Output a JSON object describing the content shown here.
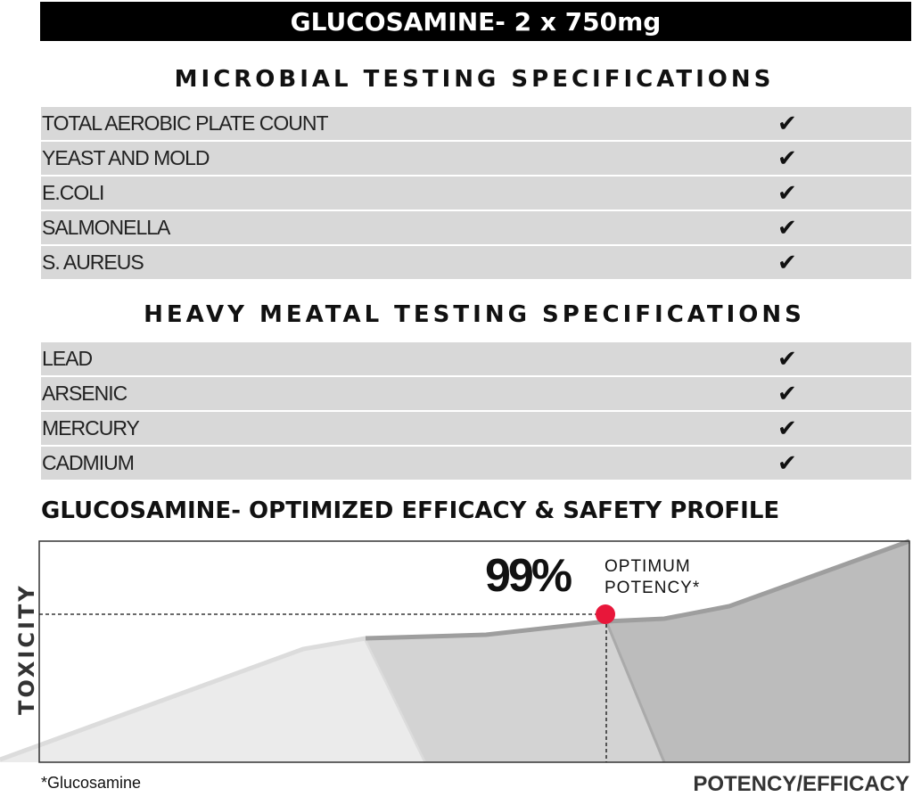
{
  "banner": {
    "title": "GLUCOSAMINE- 2 x 750mg"
  },
  "microbial": {
    "title": "MICROBIAL TESTING SPECIFICATIONS",
    "rows": [
      {
        "label": "TOTAL AEROBIC PLATE COUNT",
        "check": "✔"
      },
      {
        "label": "YEAST AND MOLD",
        "check": "✔"
      },
      {
        "label": "E.COLI",
        "check": "✔"
      },
      {
        "label": "SALMONELLA",
        "check": "✔"
      },
      {
        "label": "S. AUREUS",
        "check": "✔"
      }
    ]
  },
  "metal": {
    "title": "HEAVY MEATAL TESTING SPECIFICATIONS",
    "rows": [
      {
        "label": "LEAD",
        "check": "✔"
      },
      {
        "label": "ARSENIC",
        "check": "✔"
      },
      {
        "label": "MERCURY",
        "check": "✔"
      },
      {
        "label": "CADMIUM",
        "check": "✔"
      }
    ]
  },
  "profile": {
    "title": "GLUCOSAMINE- OPTIMIZED EFFICACY & SAFETY PROFILE",
    "ylabel": "TOXICITY",
    "xlabel": "POTENCY/EFFICACY",
    "highlight_value": "99%",
    "highlight_line1": "OPTIMUM",
    "highlight_line2": "POTENCY*",
    "footnote": "*Glucosamine",
    "marker_color": "#e8173a"
  }
}
